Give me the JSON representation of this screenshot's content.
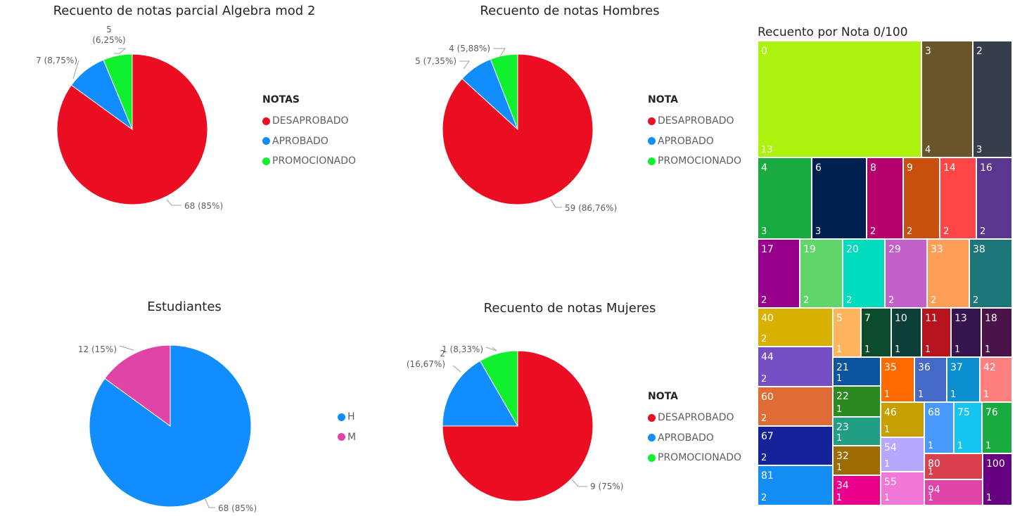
{
  "colors": {
    "DESAPROBADO": "#EB0E22",
    "APROBADO": "#118DFF",
    "PROMOCIONADO": "#11F02E",
    "H": "#118DFF",
    "M": "#E044A7"
  },
  "chart_data": [
    {
      "type": "pie",
      "title": "Recuento de notas parcial Algebra mod 2",
      "legend_title": "NOTAS",
      "legend": [
        "DESAPROBADO",
        "APROBADO",
        "PROMOCIONADO"
      ],
      "slices": [
        {
          "label": "DESAPROBADO",
          "value": 68,
          "pct_label": "68 (85%)"
        },
        {
          "label": "APROBADO",
          "value": 7,
          "pct_label": "7 (8,75%)"
        },
        {
          "label": "PROMOCIONADO",
          "value": 5,
          "pct_label": "5 (6,25%)"
        }
      ]
    },
    {
      "type": "pie",
      "title": "Recuento de notas Hombres",
      "legend_title": "NOTA",
      "legend": [
        "DESAPROBADO",
        "APROBADO",
        "PROMOCIONADO"
      ],
      "slices": [
        {
          "label": "DESAPROBADO",
          "value": 59,
          "pct_label": "59 (86,76%)"
        },
        {
          "label": "APROBADO",
          "value": 5,
          "pct_label": "5 (7,35%)"
        },
        {
          "label": "PROMOCIONADO",
          "value": 4,
          "pct_label": "4 (5,88%)"
        }
      ]
    },
    {
      "type": "pie",
      "title": "Estudiantes",
      "legend_title": "",
      "legend": [
        "H",
        "M"
      ],
      "slices": [
        {
          "label": "H",
          "value": 68,
          "pct_label": "68 (85%)"
        },
        {
          "label": "M",
          "value": 12,
          "pct_label": "12 (15%)"
        }
      ]
    },
    {
      "type": "pie",
      "title": "Recuento de notas Mujeres",
      "legend_title": "NOTA",
      "legend": [
        "DESAPROBADO",
        "APROBADO",
        "PROMOCIONADO"
      ],
      "slices": [
        {
          "label": "DESAPROBADO",
          "value": 9,
          "pct_label": "9 (75%)"
        },
        {
          "label": "APROBADO",
          "value": 2,
          "pct_label": "2 (16,67%)"
        },
        {
          "label": "PROMOCIONADO",
          "value": 1,
          "pct_label": "1 (8,33%)"
        }
      ]
    },
    {
      "type": "treemap",
      "title": "Recuento por Nota 0/100",
      "items": [
        {
          "category": "0",
          "value": 13,
          "color": "#ABF30F"
        },
        {
          "category": "3",
          "value": 4,
          "color": "#6A552A"
        },
        {
          "category": "2",
          "value": 3,
          "color": "#373D4A"
        },
        {
          "category": "4",
          "value": 3,
          "color": "#1AAB40"
        },
        {
          "category": "6",
          "value": 3,
          "color": "#002050"
        },
        {
          "category": "8",
          "value": 2,
          "color": "#B6006C"
        },
        {
          "category": "9",
          "value": 2,
          "color": "#C94F0F"
        },
        {
          "category": "14",
          "value": 2,
          "color": "#FF4545"
        },
        {
          "category": "16",
          "value": 2,
          "color": "#5A368E"
        },
        {
          "category": "17",
          "value": 2,
          "color": "#96008A"
        },
        {
          "category": "19",
          "value": 2,
          "color": "#5FD56A"
        },
        {
          "category": "20",
          "value": 2,
          "color": "#00DCBE"
        },
        {
          "category": "29",
          "value": 2,
          "color": "#C25FC8"
        },
        {
          "category": "33",
          "value": 2,
          "color": "#FF9E57"
        },
        {
          "category": "38",
          "value": 2,
          "color": "#1C7577"
        },
        {
          "category": "40",
          "value": 2,
          "color": "#D8B100"
        },
        {
          "category": "44",
          "value": 2,
          "color": "#744EC2"
        },
        {
          "category": "60",
          "value": 2,
          "color": "#E06C35"
        },
        {
          "category": "67",
          "value": 2,
          "color": "#142399"
        },
        {
          "category": "81",
          "value": 2,
          "color": "#148EF4"
        },
        {
          "category": "5",
          "value": 1,
          "color": "#FDB45C"
        },
        {
          "category": "7",
          "value": 1,
          "color": "#0B4C2A"
        },
        {
          "category": "10",
          "value": 1,
          "color": "#0C3F38"
        },
        {
          "category": "11",
          "value": 1,
          "color": "#B8141D"
        },
        {
          "category": "13",
          "value": 1,
          "color": "#371350"
        },
        {
          "category": "18",
          "value": 1,
          "color": "#4A1248"
        },
        {
          "category": "21",
          "value": 1,
          "color": "#0B54A0"
        },
        {
          "category": "35",
          "value": 1,
          "color": "#FF6A00"
        },
        {
          "category": "36",
          "value": 1,
          "color": "#4469C7"
        },
        {
          "category": "37",
          "value": 1,
          "color": "#0B8FD1"
        },
        {
          "category": "42",
          "value": 1,
          "color": "#FF7F7F"
        },
        {
          "category": "22",
          "value": 1,
          "color": "#2A8A1F"
        },
        {
          "category": "46",
          "value": 1,
          "color": "#C6A000"
        },
        {
          "category": "68",
          "value": 1,
          "color": "#4799FF"
        },
        {
          "category": "75",
          "value": 1,
          "color": "#16C5EF"
        },
        {
          "category": "76",
          "value": 1,
          "color": "#1AAB40"
        },
        {
          "category": "23",
          "value": 1,
          "color": "#219E83"
        },
        {
          "category": "54",
          "value": 1,
          "color": "#B8A7FF"
        },
        {
          "category": "32",
          "value": 1,
          "color": "#9C6B04"
        },
        {
          "category": "80",
          "value": 1,
          "color": "#D9414F"
        },
        {
          "category": "100",
          "value": 1,
          "color": "#650080"
        },
        {
          "category": "34",
          "value": 1,
          "color": "#E8008A"
        },
        {
          "category": "55",
          "value": 1,
          "color": "#F178D7"
        },
        {
          "category": "94",
          "value": 1,
          "color": "#DF44A8"
        }
      ]
    }
  ]
}
